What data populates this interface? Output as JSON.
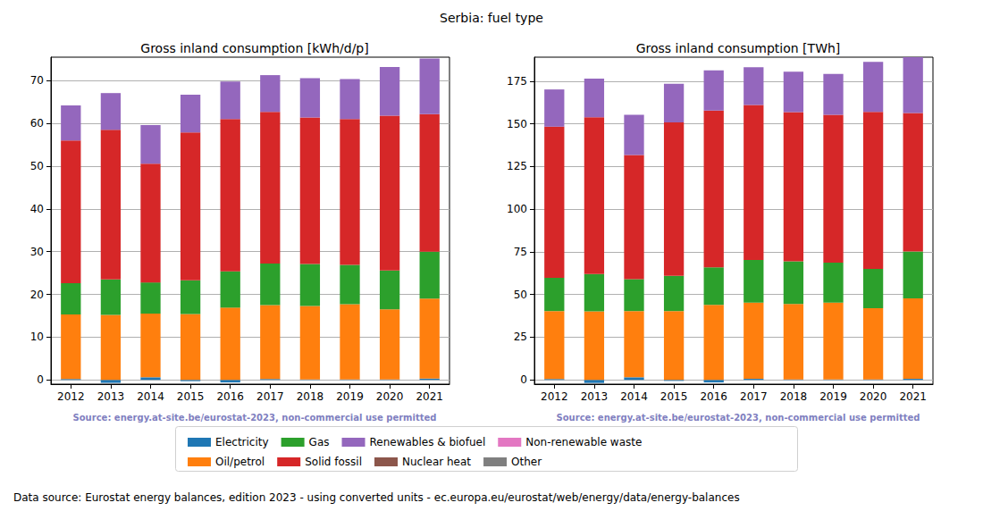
{
  "title": "Serbia: fuel type",
  "note": "Data source: Eurostat energy balances, edition 2023 - using converted units - ec.europa.eu/eurostat/web/energy/data/energy-balances",
  "chart_data": [
    {
      "type": "bar",
      "title": "Gross inland consumption [kWh/d/p]",
      "annotation": "Source: energy.at-site.be/eurostat-2023, non-commercial use permitted",
      "categories": [
        "2012",
        "2013",
        "2014",
        "2015",
        "2016",
        "2017",
        "2018",
        "2019",
        "2020",
        "2021"
      ],
      "stacked": true,
      "grid": true,
      "legend": "bottom",
      "ylim": [
        -1,
        75.5
      ],
      "yticks": [
        0,
        10,
        20,
        30,
        40,
        50,
        60,
        70
      ],
      "series": [
        {
          "name": "Electricity",
          "color": "#1f77b4",
          "values": [
            0.2,
            -0.7,
            0.6,
            -0.3,
            -0.6,
            0.2,
            0.1,
            0.1,
            0.1,
            0.3
          ]
        },
        {
          "name": "Oil/petrol",
          "color": "#ff7f0e",
          "values": [
            15.1,
            15.2,
            14.9,
            15.4,
            16.9,
            17.3,
            17.2,
            17.6,
            16.4,
            18.7
          ]
        },
        {
          "name": "Gas",
          "color": "#2ca02c",
          "values": [
            7.3,
            8.3,
            7.3,
            7.9,
            8.5,
            9.7,
            9.8,
            9.2,
            9.1,
            11.0
          ]
        },
        {
          "name": "Solid fossil",
          "color": "#d62728",
          "values": [
            33.4,
            35.0,
            27.8,
            34.6,
            35.6,
            35.5,
            34.3,
            34.1,
            36.2,
            32.2
          ]
        },
        {
          "name": "Renewables & biofuel",
          "color": "#9467bd",
          "values": [
            8.2,
            8.6,
            9.0,
            8.8,
            8.8,
            8.6,
            9.2,
            9.4,
            11.4,
            13.0
          ]
        },
        {
          "name": "Nuclear heat",
          "color": "#8c564b",
          "values": [
            0,
            0,
            0,
            0,
            0,
            0,
            0,
            0,
            0,
            0
          ]
        },
        {
          "name": "Non-renewable waste",
          "color": "#e377c2",
          "values": [
            0,
            0,
            0,
            0,
            0,
            0,
            0,
            0,
            0,
            0
          ]
        },
        {
          "name": "Other",
          "color": "#7f7f7f",
          "values": [
            0,
            0,
            0,
            0,
            0,
            0,
            0,
            0,
            0,
            0
          ]
        }
      ]
    },
    {
      "type": "bar",
      "title": "Gross inland consumption [TWh]",
      "annotation": "Source: energy.at-site.be/eurostat-2023, non-commercial use permitted",
      "categories": [
        "2012",
        "2013",
        "2014",
        "2015",
        "2016",
        "2017",
        "2018",
        "2019",
        "2020",
        "2021"
      ],
      "stacked": true,
      "grid": true,
      "legend": "bottom",
      "ylim": [
        -2.5,
        189
      ],
      "yticks": [
        0,
        25,
        50,
        75,
        100,
        125,
        150,
        175
      ],
      "series": [
        {
          "name": "Electricity",
          "color": "#1f77b4",
          "values": [
            0.5,
            -1.8,
            1.5,
            -0.6,
            -1.5,
            0.6,
            0.3,
            0.2,
            0.3,
            0.6
          ]
        },
        {
          "name": "Oil/petrol",
          "color": "#ff7f0e",
          "values": [
            39.8,
            40.2,
            38.8,
            40.3,
            44.0,
            44.7,
            44.2,
            45.0,
            41.7,
            47.1
          ]
        },
        {
          "name": "Gas",
          "color": "#2ca02c",
          "values": [
            19.5,
            21.8,
            18.7,
            20.6,
            21.9,
            24.9,
            24.9,
            23.4,
            23.0,
            27.5
          ]
        },
        {
          "name": "Solid fossil",
          "color": "#d62728",
          "values": [
            88.5,
            91.8,
            72.7,
            89.9,
            91.9,
            90.8,
            87.4,
            86.6,
            92.0,
            81.1
          ]
        },
        {
          "name": "Renewables & biofuel",
          "color": "#9467bd",
          "values": [
            21.8,
            22.6,
            23.6,
            22.6,
            23.5,
            22.1,
            23.7,
            24.0,
            29.2,
            32.7
          ]
        },
        {
          "name": "Nuclear heat",
          "color": "#8c564b",
          "values": [
            0,
            0,
            0,
            0,
            0,
            0,
            0,
            0,
            0,
            0
          ]
        },
        {
          "name": "Non-renewable waste",
          "color": "#e377c2",
          "values": [
            0,
            0,
            0,
            0,
            0,
            0,
            0,
            0,
            0,
            0
          ]
        },
        {
          "name": "Other",
          "color": "#7f7f7f",
          "values": [
            0,
            0,
            0,
            0,
            0,
            0,
            0,
            0,
            0,
            0
          ]
        }
      ]
    }
  ]
}
